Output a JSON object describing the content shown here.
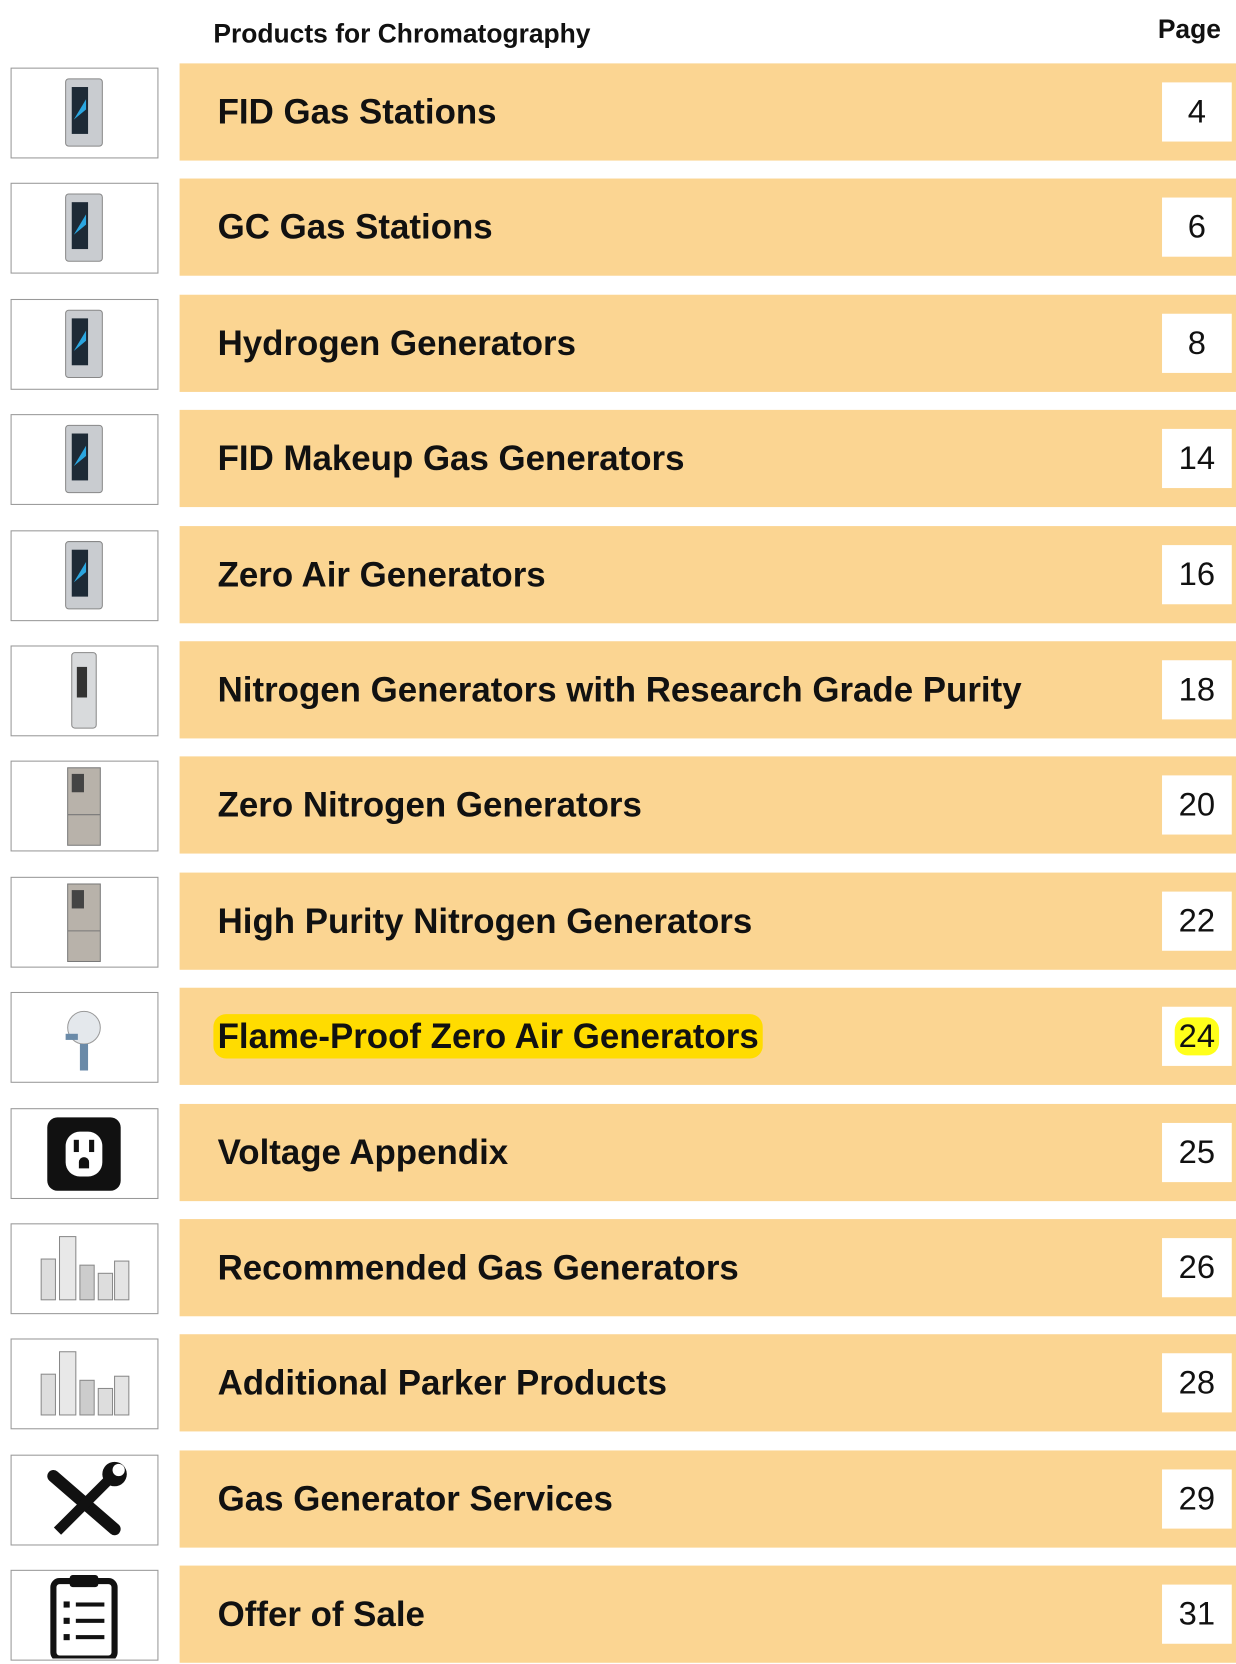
{
  "header": {
    "title": "Products for Chromatography",
    "page_heading": "Page"
  },
  "rows": [
    {
      "label": "FID Gas Stations",
      "page": 4
    },
    {
      "label": "GC Gas Stations",
      "page": 6
    },
    {
      "label": "Hydrogen Generators",
      "page": 8
    },
    {
      "label": "FID Makeup Gas Generators",
      "page": 14
    },
    {
      "label": "Zero Air Generators",
      "page": 16
    },
    {
      "label": "Nitrogen Generators with Research Grade Purity",
      "page": 18
    },
    {
      "label": "Zero Nitrogen Generators",
      "page": 20
    },
    {
      "label": "High Purity Nitrogen Generators",
      "page": 22
    },
    {
      "label": "Flame-Proof Zero Air Generators",
      "page": 24,
      "highlighted": true
    },
    {
      "label": "Voltage Appendix",
      "page": 25
    },
    {
      "label": "Recommended Gas Generators",
      "page": 26
    },
    {
      "label": "Additional Parker Products",
      "page": 28
    },
    {
      "label": "Gas Generator Services",
      "page": 29
    },
    {
      "label": "Offer of Sale",
      "page": 31
    }
  ]
}
